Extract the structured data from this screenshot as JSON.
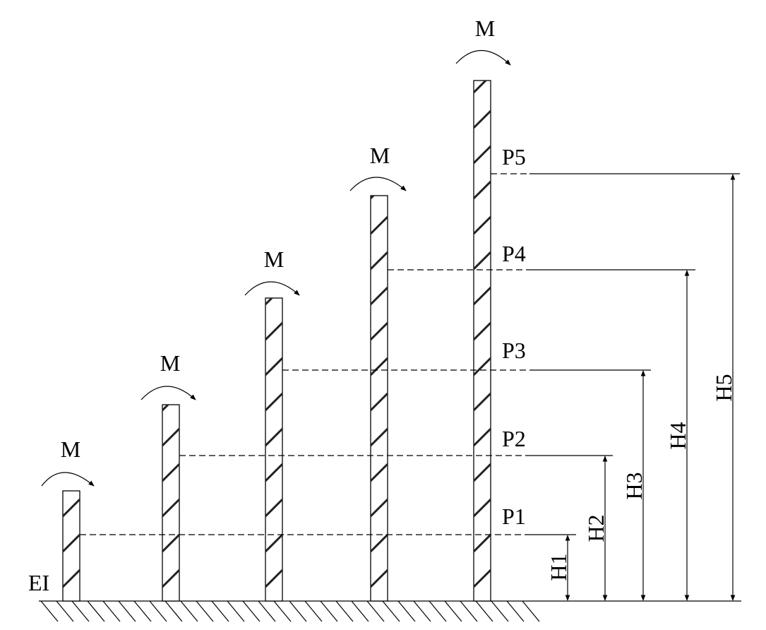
{
  "figure": {
    "stiffness_label": "EI",
    "moment_label": "M",
    "columns": [
      {
        "load": "P1",
        "height": "H1"
      },
      {
        "load": "P2",
        "height": "H2"
      },
      {
        "load": "P3",
        "height": "H3"
      },
      {
        "load": "P4",
        "height": "H4"
      },
      {
        "load": "P5",
        "height": "H5"
      }
    ]
  }
}
